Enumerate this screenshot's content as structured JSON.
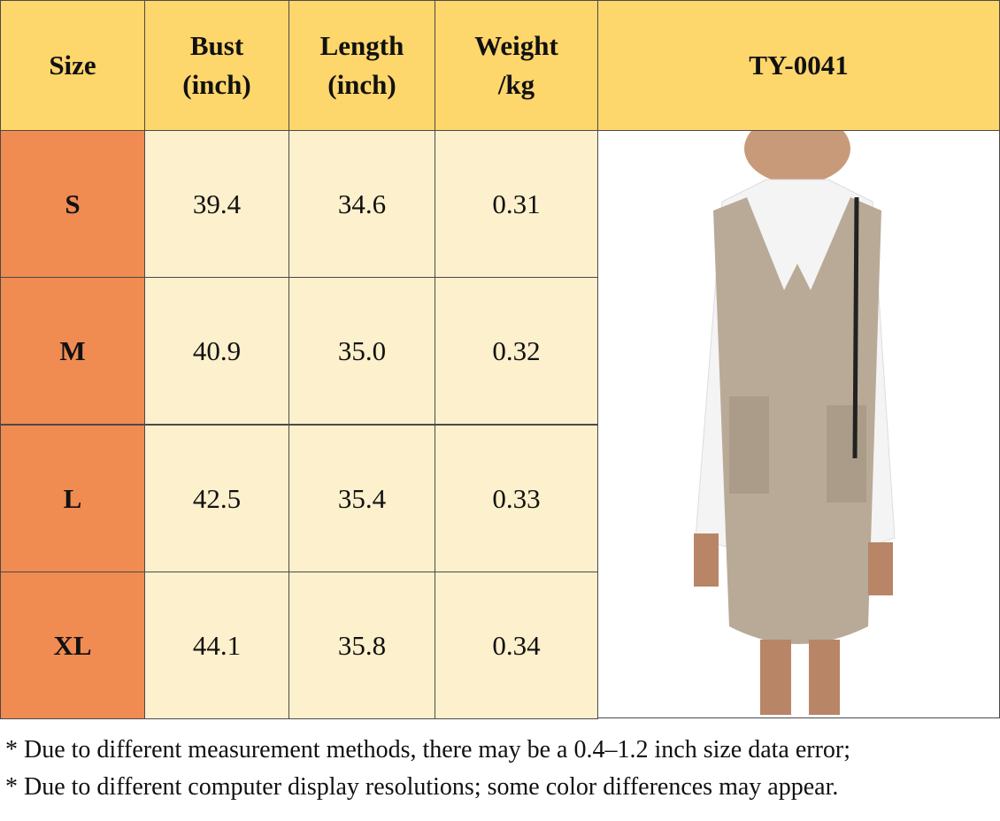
{
  "header": {
    "columns": [
      "Size",
      "Bust\n(inch)",
      "Length\n(inch)",
      "Weight\n/kg"
    ],
    "model": "TY-0041"
  },
  "table": {
    "rows": [
      [
        "S",
        "39.4",
        "34.6",
        "0.31"
      ],
      [
        "M",
        "40.9",
        "35.0",
        "0.32"
      ],
      [
        "L",
        "42.5",
        "35.4",
        "0.33"
      ],
      [
        "XL",
        "44.1",
        "35.8",
        "0.34"
      ]
    ]
  },
  "notes": [
    "* Due to different measurement methods, there may be a 0.4–1.2 inch size data error;",
    "* Due to different computer display resolutions; some color differences may appear."
  ]
}
